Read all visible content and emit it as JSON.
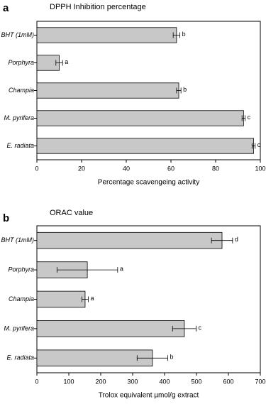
{
  "chart_data": [
    {
      "type": "bar",
      "orientation": "horizontal",
      "panel_label": "a",
      "title": "DPPH Inhibition percentage",
      "x_label": "Percentage scavengeing activity",
      "categories": [
        "BHT (1mM)",
        "Porphyra",
        "Champia",
        "M. pyrifera",
        "E. radiata"
      ],
      "values": [
        62.5,
        10,
        63.5,
        92.5,
        97
      ],
      "errors": [
        1.5,
        1.5,
        1,
        0.7,
        0.7
      ],
      "annotations": [
        "b",
        "a",
        "b",
        "c",
        "c"
      ],
      "color": "#c8c8c8",
      "xlim": [
        0,
        100
      ],
      "xticks": [
        0,
        20,
        40,
        60,
        80,
        100
      ]
    },
    {
      "type": "bar",
      "orientation": "horizontal",
      "panel_label": "b",
      "title": "ORAC value",
      "x_label": "Trolox equivalent µmol/g extract",
      "categories": [
        "BHT (1mM)",
        "Porphyra",
        "Champia",
        "M. pyrifera",
        "E. radiata"
      ],
      "values": [
        580,
        158,
        151,
        462,
        362
      ],
      "errors": [
        33,
        95,
        10,
        37,
        48
      ],
      "annotations": [
        "d",
        "a",
        "a",
        "c",
        "b"
      ],
      "color": "#c8c8c8",
      "xlim": [
        0,
        700
      ],
      "xticks": [
        0,
        100,
        200,
        300,
        400,
        500,
        600,
        700
      ]
    }
  ]
}
